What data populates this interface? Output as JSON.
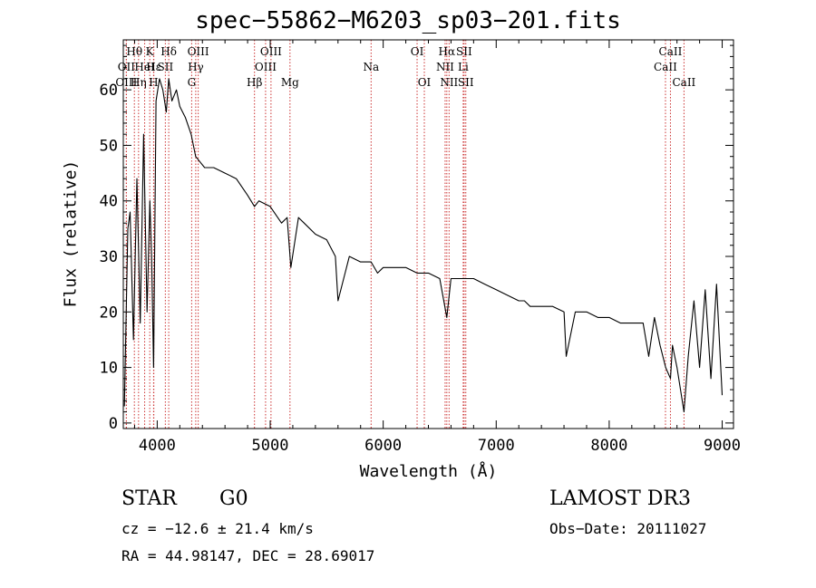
{
  "chart_data": {
    "type": "line",
    "title": "spec−55862−M6203_sp03−201.fits",
    "xlabel": "Wavelength (Å)",
    "ylabel": "Flux (relative)",
    "xlim": [
      3700,
      9100
    ],
    "ylim": [
      -1,
      69
    ],
    "xticks": [
      4000,
      5000,
      6000,
      7000,
      8000,
      9000
    ],
    "yticks": [
      0,
      10,
      20,
      30,
      40,
      50,
      60
    ],
    "line_color": "#000000",
    "marker_color": "#cc3333",
    "series": [
      {
        "name": "flux",
        "x": [
          3710,
          3740,
          3760,
          3790,
          3820,
          3850,
          3880,
          3910,
          3935,
          3950,
          3968,
          3990,
          4020,
          4050,
          4080,
          4102,
          4130,
          4170,
          4200,
          4250,
          4300,
          4340,
          4380,
          4420,
          4500,
          4600,
          4700,
          4800,
          4861,
          4900,
          5000,
          5100,
          5150,
          5183,
          5250,
          5300,
          5400,
          5500,
          5577,
          5600,
          5700,
          5800,
          5893,
          5950,
          6000,
          6100,
          6200,
          6300,
          6400,
          6500,
          6563,
          6600,
          6700,
          6800,
          6900,
          7000,
          7100,
          7200,
          7250,
          7300,
          7400,
          7500,
          7600,
          7620,
          7700,
          7800,
          7900,
          8000,
          8100,
          8200,
          8300,
          8350,
          8400,
          8450,
          8500,
          8542,
          8560,
          8600,
          8662,
          8700,
          8750,
          8800,
          8850,
          8900,
          8950,
          9000
        ],
        "y": [
          3,
          35,
          38,
          15,
          44,
          18,
          52,
          20,
          40,
          30,
          10,
          58,
          62,
          60,
          56,
          62,
          58,
          60,
          57,
          55,
          52,
          48,
          47,
          46,
          46,
          45,
          44,
          41,
          39,
          40,
          39,
          36,
          37,
          28,
          37,
          36,
          34,
          33,
          30,
          22,
          30,
          29,
          29,
          27,
          28,
          28,
          28,
          27,
          27,
          26,
          19,
          26,
          26,
          26,
          25,
          24,
          23,
          22,
          22,
          21,
          21,
          21,
          20,
          12,
          20,
          20,
          19,
          19,
          18,
          18,
          18,
          12,
          19,
          14,
          10,
          8,
          14,
          10,
          2,
          12,
          22,
          10,
          24,
          8,
          25,
          5
        ]
      }
    ],
    "line_markers": [
      {
        "name": "OII",
        "x": 3727,
        "row": 2
      },
      {
        "name": "Hθ",
        "x": 3798,
        "row": 1
      },
      {
        "name": "OIII",
        "x": 3727,
        "row": 3
      },
      {
        "name": "Hη",
        "x": 3835,
        "row": 3
      },
      {
        "name": "HeI",
        "x": 3889,
        "row": 2
      },
      {
        "name": "K",
        "x": 3934,
        "row": 1
      },
      {
        "name": "H",
        "x": 3968,
        "row": 3
      },
      {
        "name": "Hε",
        "x": 3970,
        "row": 2
      },
      {
        "name": "Hδ",
        "x": 4102,
        "row": 1
      },
      {
        "name": "SII",
        "x": 4072,
        "row": 2
      },
      {
        "name": "G",
        "x": 4305,
        "row": 3
      },
      {
        "name": "Hγ",
        "x": 4341,
        "row": 2
      },
      {
        "name": "OIII",
        "x": 4363,
        "row": 1
      },
      {
        "name": "Hβ",
        "x": 4861,
        "row": 3
      },
      {
        "name": "OIII",
        "x": 4959,
        "row": 2
      },
      {
        "name": "OIII",
        "x": 5007,
        "row": 1
      },
      {
        "name": "Mg",
        "x": 5175,
        "row": 3
      },
      {
        "name": "Na",
        "x": 5893,
        "row": 2
      },
      {
        "name": "OI",
        "x": 6300,
        "row": 1
      },
      {
        "name": "OI",
        "x": 6364,
        "row": 3
      },
      {
        "name": "NII",
        "x": 6548,
        "row": 2
      },
      {
        "name": "Hα",
        "x": 6563,
        "row": 1
      },
      {
        "name": "NII",
        "x": 6583,
        "row": 3
      },
      {
        "name": "Li",
        "x": 6708,
        "row": 2
      },
      {
        "name": "SII",
        "x": 6716,
        "row": 1
      },
      {
        "name": "SII",
        "x": 6731,
        "row": 3
      },
      {
        "name": "CaII",
        "x": 8498,
        "row": 2
      },
      {
        "name": "CaII",
        "x": 8542,
        "row": 1
      },
      {
        "name": "CaII",
        "x": 8662,
        "row": 3
      }
    ]
  },
  "info": {
    "class": "STAR",
    "subclass": "G0",
    "survey": "LAMOST DR3",
    "cz_line": "cz = −12.6 ± 21.4 km/s",
    "obs_date": "Obs−Date: 20111027",
    "radec": "RA =  44.98147, DEC =  28.69017"
  }
}
